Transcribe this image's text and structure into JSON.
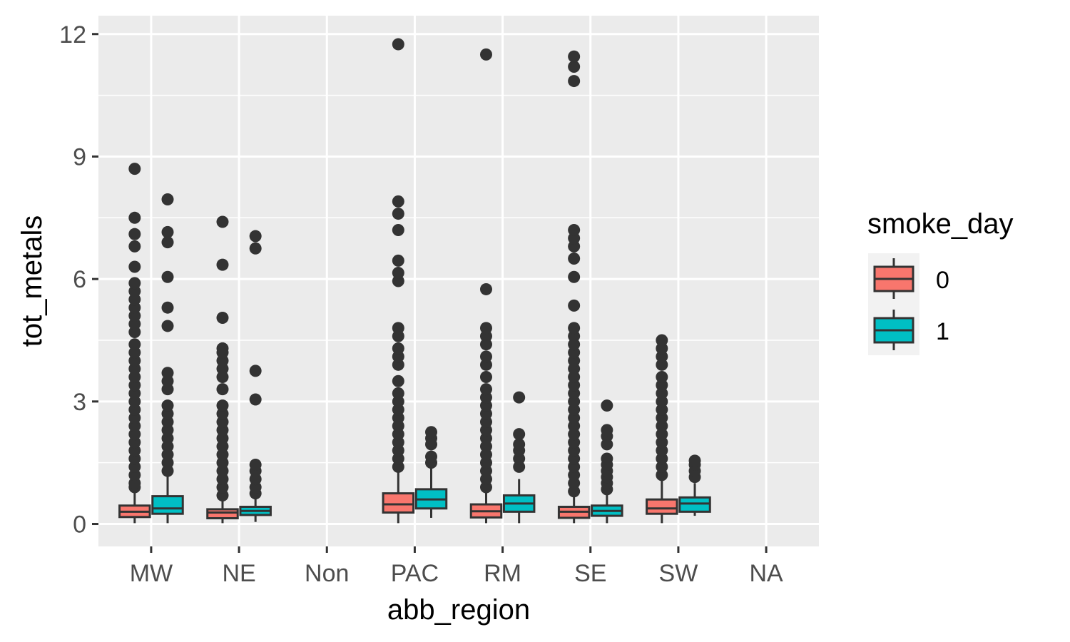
{
  "chart_data": {
    "type": "box",
    "xlabel": "abb_region",
    "ylabel": "tot_metals",
    "categories": [
      "MW",
      "NE",
      "Non",
      "PAC",
      "RM",
      "SE",
      "SW",
      "NA"
    ],
    "ylim": [
      -0.55,
      12.45
    ],
    "yticks": [
      0,
      3,
      6,
      9,
      12
    ],
    "grid": true,
    "legend": {
      "title": "smoke_day",
      "placement": "right",
      "entries": [
        {
          "label": "0",
          "color": "#F8766D"
        },
        {
          "label": "1",
          "color": "#00BFC4"
        }
      ]
    },
    "series": [
      {
        "name": "0",
        "color": "#F8766D",
        "boxes": [
          {
            "category": "MW",
            "min": 0.02,
            "q1": 0.17,
            "median": 0.3,
            "q3": 0.45,
            "max": 0.8,
            "outliers": [
              0.9,
              1.0,
              1.2,
              1.4,
              1.6,
              1.8,
              2.0,
              2.2,
              2.4,
              2.6,
              2.8,
              3.0,
              3.2,
              3.4,
              3.6,
              3.8,
              4.0,
              4.2,
              4.4,
              4.7,
              4.9,
              5.1,
              5.3,
              5.5,
              5.7,
              5.9,
              6.3,
              6.8,
              7.1,
              7.5,
              8.7
            ]
          },
          {
            "category": "NE",
            "min": 0.02,
            "q1": 0.14,
            "median": 0.28,
            "q3": 0.36,
            "max": 0.6,
            "outliers": [
              0.7,
              0.9,
              1.1,
              1.3,
              1.5,
              1.7,
              1.9,
              2.1,
              2.3,
              2.5,
              2.7,
              2.9,
              3.3,
              3.6,
              3.8,
              4.0,
              4.2,
              4.3,
              5.05,
              6.35,
              7.4
            ]
          },
          {
            "category": "PAC",
            "min": 0.02,
            "q1": 0.28,
            "median": 0.48,
            "q3": 0.75,
            "max": 1.3,
            "outliers": [
              1.4,
              1.6,
              1.8,
              2.0,
              2.2,
              2.4,
              2.6,
              2.8,
              3.0,
              3.2,
              3.5,
              3.9,
              4.1,
              4.3,
              4.6,
              4.8,
              5.95,
              6.15,
              6.45,
              7.2,
              7.6,
              7.9,
              11.75
            ]
          },
          {
            "category": "RM",
            "min": 0.02,
            "q1": 0.16,
            "median": 0.31,
            "q3": 0.48,
            "max": 0.8,
            "outliers": [
              0.9,
              1.1,
              1.3,
              1.5,
              1.7,
              1.9,
              2.1,
              2.3,
              2.5,
              2.7,
              2.9,
              3.1,
              3.3,
              3.6,
              3.9,
              4.1,
              4.4,
              4.6,
              4.8,
              5.75,
              11.5
            ]
          },
          {
            "category": "SE",
            "min": 0.02,
            "q1": 0.15,
            "median": 0.3,
            "q3": 0.42,
            "max": 0.7,
            "outliers": [
              0.8,
              1.0,
              1.2,
              1.4,
              1.6,
              1.8,
              2.0,
              2.2,
              2.4,
              2.6,
              2.8,
              3.0,
              3.2,
              3.4,
              3.6,
              3.8,
              4.0,
              4.2,
              4.4,
              4.6,
              4.8,
              5.35,
              6.05,
              6.5,
              6.8,
              7.0,
              7.2,
              10.85,
              11.2,
              11.45
            ]
          },
          {
            "category": "SW",
            "min": 0.02,
            "q1": 0.25,
            "median": 0.38,
            "q3": 0.6,
            "max": 1.1,
            "outliers": [
              1.2,
              1.4,
              1.6,
              1.8,
              2.0,
              2.2,
              2.4,
              2.6,
              2.8,
              3.0,
              3.2,
              3.4,
              3.6,
              3.9,
              4.1,
              4.3,
              4.5
            ]
          }
        ]
      },
      {
        "name": "1",
        "color": "#00BFC4",
        "boxes": [
          {
            "category": "MW",
            "min": 0.02,
            "q1": 0.25,
            "median": 0.38,
            "q3": 0.68,
            "max": 1.2,
            "outliers": [
              1.3,
              1.5,
              1.7,
              1.9,
              2.1,
              2.3,
              2.5,
              2.7,
              2.9,
              3.3,
              3.5,
              3.7,
              4.85,
              5.3,
              6.05,
              6.9,
              7.15,
              7.95
            ]
          },
          {
            "category": "NE",
            "min": 0.05,
            "q1": 0.22,
            "median": 0.32,
            "q3": 0.42,
            "max": 0.65,
            "outliers": [
              0.75,
              0.9,
              1.1,
              1.3,
              1.45,
              3.05,
              3.75,
              6.75,
              7.05
            ]
          },
          {
            "category": "PAC",
            "min": 0.15,
            "q1": 0.38,
            "median": 0.6,
            "q3": 0.85,
            "max": 1.4,
            "outliers": [
              1.5,
              1.65,
              1.95,
              2.1,
              2.25
            ]
          },
          {
            "category": "RM",
            "min": 0.02,
            "q1": 0.3,
            "median": 0.5,
            "q3": 0.7,
            "max": 1.1,
            "outliers": [
              1.4,
              1.6,
              1.8,
              1.95,
              2.2,
              3.1
            ]
          },
          {
            "category": "SE",
            "min": 0.02,
            "q1": 0.2,
            "median": 0.32,
            "q3": 0.45,
            "max": 0.75,
            "outliers": [
              0.85,
              1.0,
              1.15,
              1.3,
              1.45,
              1.6,
              1.95,
              2.15,
              2.3,
              2.9
            ]
          },
          {
            "category": "SW",
            "min": 0.2,
            "q1": 0.3,
            "median": 0.5,
            "q3": 0.65,
            "max": 1.0,
            "outliers": [
              1.15,
              1.3,
              1.45,
              1.55
            ]
          }
        ]
      }
    ]
  }
}
